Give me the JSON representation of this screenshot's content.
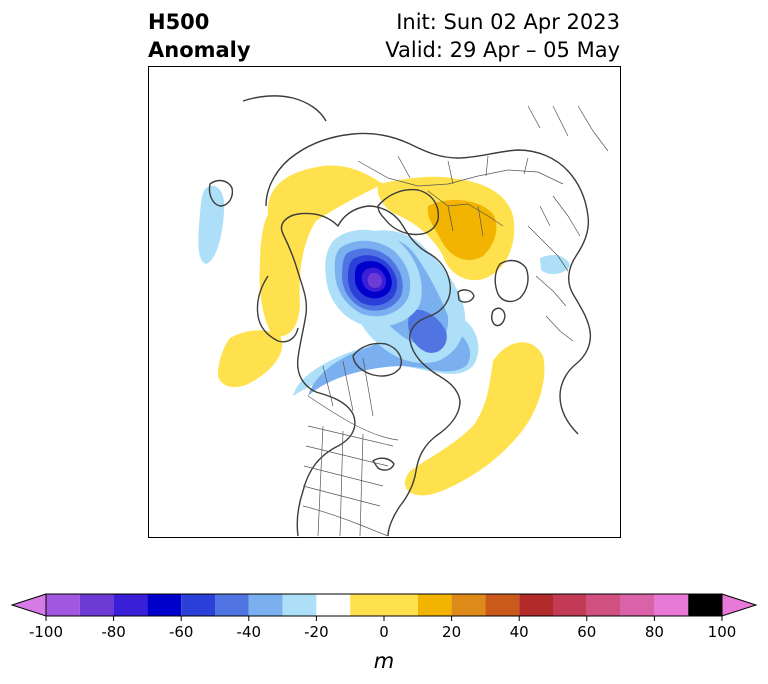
{
  "header": {
    "title_line1": "H500",
    "title_line2": "Anomaly",
    "init_text": "Init: Sun 02 Apr 2023",
    "valid_text": "Valid: 29 Apr – 05 May"
  },
  "colorbar": {
    "levels": [
      -100,
      -90,
      -80,
      -70,
      -60,
      -50,
      -40,
      -30,
      -20,
      -10,
      10,
      20,
      30,
      40,
      50,
      60,
      70,
      80,
      90,
      100
    ],
    "tick_values": [
      -100,
      -80,
      -60,
      -40,
      -20,
      0,
      20,
      40,
      60,
      80,
      100
    ],
    "tick_labels": [
      "-100",
      "-80",
      "-60",
      "-40",
      "-20",
      "0",
      "20",
      "40",
      "60",
      "80",
      "100"
    ],
    "neg_colors": [
      "#d67ae6",
      "#a257e0",
      "#6e3ad6",
      "#3a1fd6",
      "#0000cc",
      "#2a40d9",
      "#5075e3",
      "#7ab0f0",
      "#ade0f8"
    ],
    "zero_color": "#ffffff",
    "pos_colors": [
      "#ffe14d",
      "#f2b400",
      "#dd8a1a",
      "#c95a1a",
      "#b22a2a",
      "#c23a55",
      "#d0507f",
      "#da62a8",
      "#e879d6"
    ],
    "unit_label": "m"
  },
  "map": {
    "projection": "north-polar-stereographic",
    "anomaly_areas": [
      {
        "name": "positive-anomaly-canada-arctic",
        "value": 20
      },
      {
        "name": "positive-anomaly-central-asia",
        "value": 30
      },
      {
        "name": "positive-anomaly-east-pacific",
        "value": 20
      },
      {
        "name": "positive-anomaly-west-atlantic",
        "value": 20
      },
      {
        "name": "negative-anomaly-north-pole",
        "value": -80
      },
      {
        "name": "negative-anomaly-greenland",
        "value": -40
      },
      {
        "name": "negative-anomaly-canada",
        "value": -30
      },
      {
        "name": "negative-anomaly-west-atlantic",
        "value": -20
      }
    ]
  }
}
